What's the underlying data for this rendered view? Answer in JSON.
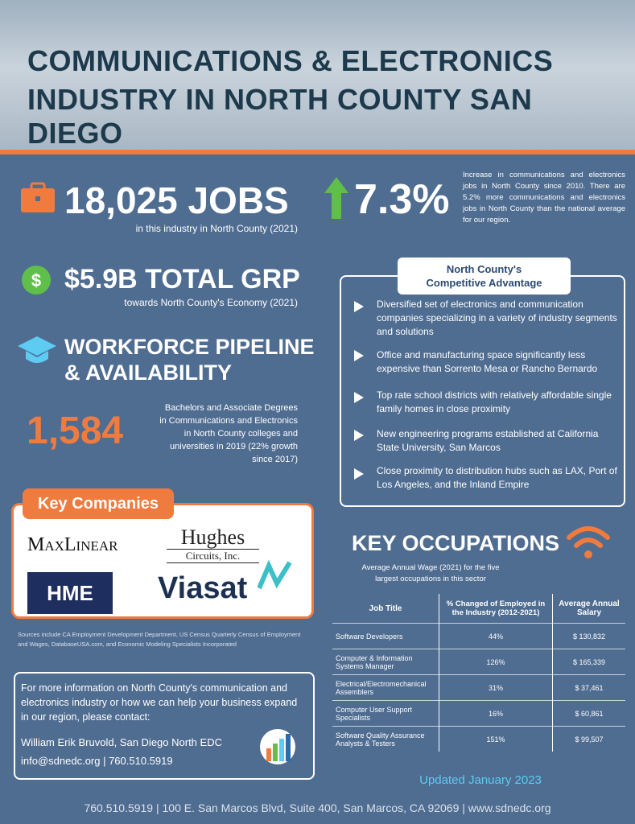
{
  "header": {
    "title_line1": "COMMUNICATIONS & ELECTRONICS",
    "title_line2": "INDUSTRY IN NORTH COUNTY SAN DIEGO"
  },
  "jobs": {
    "value": "18,025 JOBS",
    "caption": "in this industry in North County (2021)"
  },
  "growth": {
    "value": "7.3%",
    "description": "Increase in communications and electronics jobs in North County since 2010. There are 5.2% more communications and electronics jobs in North County than the national average for our region."
  },
  "grp": {
    "value": "$5.9B TOTAL GRP",
    "caption": "towards North County's Economy (2021)"
  },
  "workforce": {
    "title_line1": "WORKFORCE PIPELINE",
    "title_line2": "& AVAILABILITY",
    "value": "1,584",
    "description": "Bachelors and Associate Degrees in Communications and Electronics in North County colleges and universities in 2019 (22% growth since 2017)"
  },
  "advantage": {
    "title_line1": "North County's",
    "title_line2": "Competitive Advantage",
    "items": [
      "Diversified set of electronics and communication companies specializing in a variety of industry segments and solutions",
      "Office and manufacturing space significantly less expensive than Sorrento Mesa or Rancho Bernardo",
      "Top rate school districts with relatively affordable single family homes in close proximity",
      "New engineering programs established at California State University, San Marcos",
      "Close proximity to distribution hubs such as LAX,  Port of Los Angeles, and the Inland Empire"
    ]
  },
  "key_companies": {
    "title": "Key Companies",
    "logos": [
      "MaxLinear",
      "Hughes",
      "Circuits, Inc.",
      "HME",
      "Viasat"
    ]
  },
  "sources": "Sources include CA Employment Development Department, US Census Quarterly Census of Employment and Wages, DatabaseUSA.com, and Economic Modeling Specialists Incorporated",
  "occupations": {
    "title": "KEY OCCUPATIONS",
    "subtitle": "Average Annual Wage (2021) for the five largest occupations in this sector",
    "table": {
      "headers": [
        "Job Title",
        "% Changed of Employed in the Industry (2012-2021)",
        "Average Annual Salary"
      ],
      "rows": [
        [
          "Software Developers",
          "44%",
          "$ 130,832"
        ],
        [
          "Computer & Information Systems Manager",
          "126%",
          "$ 165,339"
        ],
        [
          "Electrical/Electromechanical Assemblers",
          "31%",
          "$ 37,461"
        ],
        [
          "Computer User Support Specialists",
          "16%",
          "$ 60,861"
        ],
        [
          "Software Quality Assurance Analysts & Testers",
          "151%",
          "$ 99,507"
        ]
      ]
    }
  },
  "contact": {
    "text": "For more information on North County's communication and electronics industry or how we can help your business expand in our region, please contact:",
    "name": "William Erik Bruvold, San Diego North EDC",
    "details": "info@sdnedc.org | 760.510.5919"
  },
  "updated": "Updated January 2023",
  "footer": "760.510.5919 | 100 E. San Marcos Blvd, Suite 400, San Marcos, CA 92069 | www.sdnedc.org"
}
